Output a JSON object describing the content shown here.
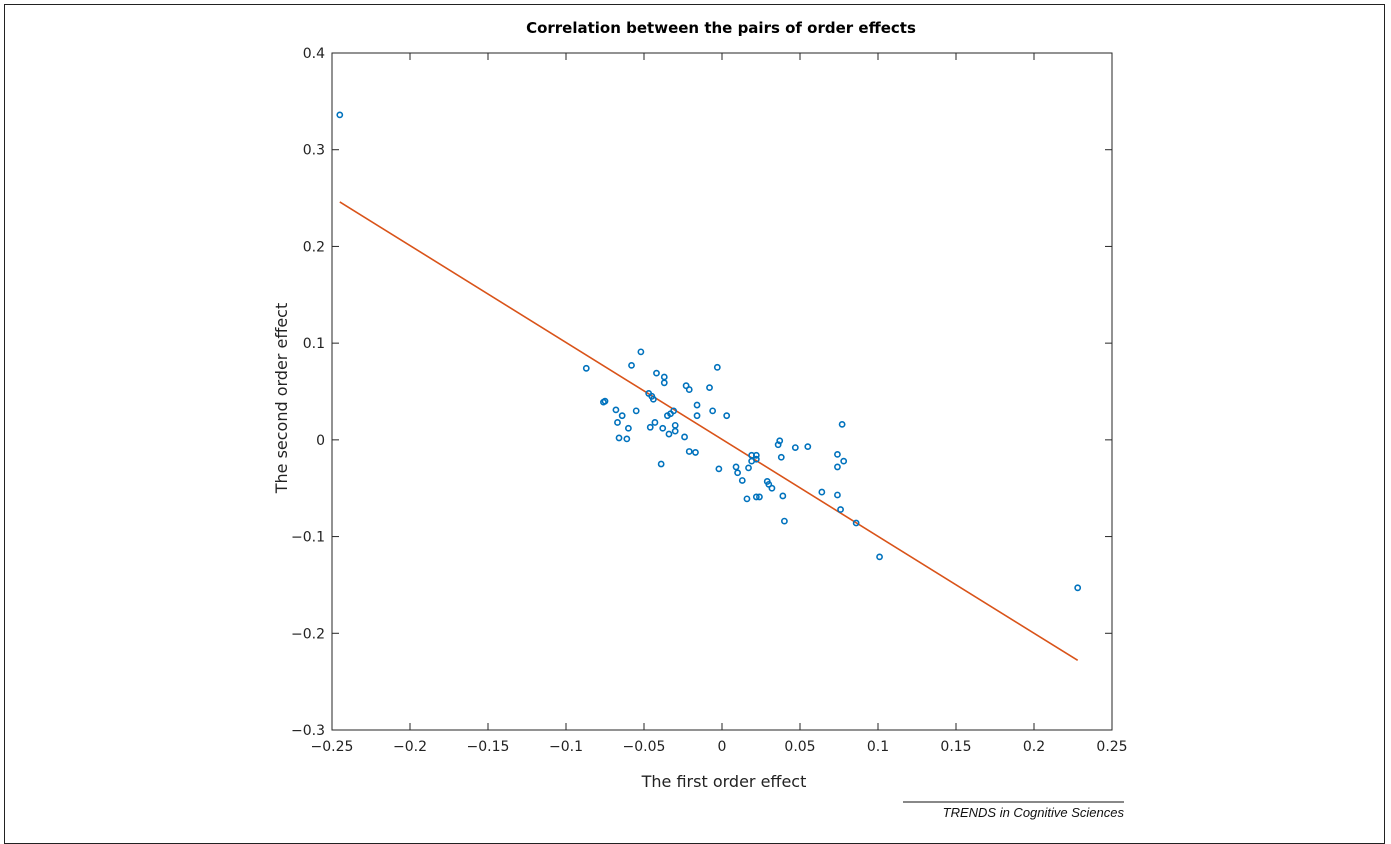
{
  "footer_text": "TRENDS in Cognitive Sciences",
  "colors": {
    "points": "#0072bd",
    "fit_line": "#d95319",
    "axes": "#262626",
    "background": "#ffffff"
  },
  "chart_data": {
    "type": "scatter",
    "title": "Correlation between the pairs of order effects",
    "xlabel": "The first order effect",
    "ylabel": "The second order effect",
    "xlim": [
      -0.25,
      0.25
    ],
    "ylim": [
      -0.3,
      0.4
    ],
    "xticks": [
      -0.25,
      -0.2,
      -0.15,
      -0.1,
      -0.05,
      0,
      0.05,
      0.1,
      0.15,
      0.2,
      0.25
    ],
    "xtick_labels": [
      "−0.25",
      "−0.2",
      "−0.15",
      "−0.1",
      "−0.05",
      "0",
      "0.05",
      "0.1",
      "0.15",
      "0.2",
      "0.25"
    ],
    "yticks": [
      -0.3,
      -0.2,
      -0.1,
      0,
      0.1,
      0.2,
      0.3,
      0.4
    ],
    "ytick_labels": [
      "−0.3",
      "−0.2",
      "−0.1",
      "0",
      "0.1",
      "0.2",
      "0.3",
      "0.4"
    ],
    "grid": false,
    "series": [
      {
        "type": "scatter",
        "marker": "circle-open",
        "points": [
          [
            -0.245,
            0.336
          ],
          [
            -0.087,
            0.074
          ],
          [
            -0.076,
            0.039
          ],
          [
            -0.075,
            0.04
          ],
          [
            -0.068,
            0.031
          ],
          [
            -0.067,
            0.018
          ],
          [
            -0.066,
            0.002
          ],
          [
            -0.064,
            0.025
          ],
          [
            -0.061,
            0.001
          ],
          [
            -0.06,
            0.012
          ],
          [
            -0.058,
            0.077
          ],
          [
            -0.055,
            0.03
          ],
          [
            -0.052,
            0.091
          ],
          [
            -0.047,
            0.048
          ],
          [
            -0.046,
            0.013
          ],
          [
            -0.045,
            0.045
          ],
          [
            -0.044,
            0.042
          ],
          [
            -0.043,
            0.018
          ],
          [
            -0.042,
            0.069
          ],
          [
            -0.039,
            -0.025
          ],
          [
            -0.038,
            0.012
          ],
          [
            -0.037,
            0.065
          ],
          [
            -0.037,
            0.059
          ],
          [
            -0.035,
            0.025
          ],
          [
            -0.034,
            0.006
          ],
          [
            -0.033,
            0.027
          ],
          [
            -0.031,
            0.03
          ],
          [
            -0.03,
            0.009
          ],
          [
            -0.03,
            0.015
          ],
          [
            -0.024,
            0.003
          ],
          [
            -0.023,
            0.056
          ],
          [
            -0.021,
            0.052
          ],
          [
            -0.021,
            -0.012
          ],
          [
            -0.017,
            -0.013
          ],
          [
            -0.016,
            0.025
          ],
          [
            -0.016,
            0.036
          ],
          [
            -0.008,
            0.054
          ],
          [
            -0.006,
            0.03
          ],
          [
            -0.003,
            0.075
          ],
          [
            -0.002,
            -0.03
          ],
          [
            0.003,
            0.025
          ],
          [
            0.009,
            -0.028
          ],
          [
            0.01,
            -0.034
          ],
          [
            0.013,
            -0.042
          ],
          [
            0.016,
            -0.061
          ],
          [
            0.017,
            -0.029
          ],
          [
            0.019,
            -0.016
          ],
          [
            0.019,
            -0.022
          ],
          [
            0.022,
            -0.016
          ],
          [
            0.022,
            -0.02
          ],
          [
            0.022,
            -0.059
          ],
          [
            0.024,
            -0.059
          ],
          [
            0.029,
            -0.043
          ],
          [
            0.03,
            -0.046
          ],
          [
            0.032,
            -0.05
          ],
          [
            0.036,
            -0.005
          ],
          [
            0.037,
            -0.001
          ],
          [
            0.038,
            -0.018
          ],
          [
            0.039,
            -0.058
          ],
          [
            0.04,
            -0.084
          ],
          [
            0.047,
            -0.008
          ],
          [
            0.055,
            -0.007
          ],
          [
            0.064,
            -0.054
          ],
          [
            0.074,
            -0.015
          ],
          [
            0.074,
            -0.028
          ],
          [
            0.074,
            -0.057
          ],
          [
            0.076,
            -0.072
          ],
          [
            0.077,
            0.016
          ],
          [
            0.078,
            -0.022
          ],
          [
            0.086,
            -0.086
          ],
          [
            0.101,
            -0.121
          ],
          [
            0.228,
            -0.153
          ]
        ]
      },
      {
        "type": "line",
        "points": [
          [
            -0.245,
            0.246
          ],
          [
            0.228,
            -0.228
          ]
        ]
      }
    ],
    "legend": "none"
  }
}
